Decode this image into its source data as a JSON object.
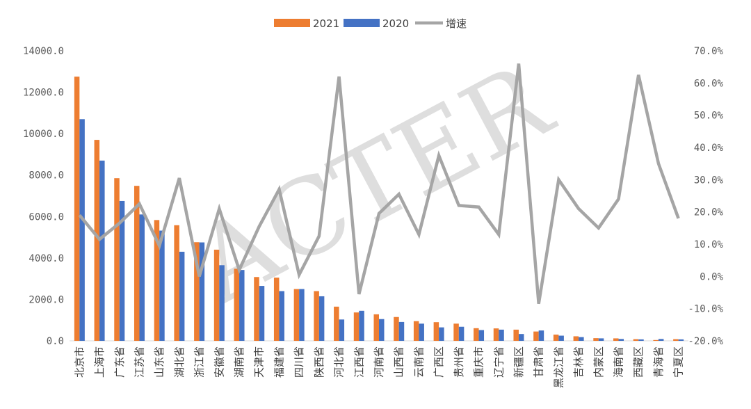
{
  "chart_data": {
    "type": "bar",
    "categories": [
      "北京市",
      "上海市",
      "广东省",
      "江苏省",
      "山东省",
      "湖北省",
      "浙江省",
      "安徽省",
      "湖南省",
      "天津市",
      "福建省",
      "四川省",
      "陕西省",
      "河北省",
      "江西省",
      "河南省",
      "山西省",
      "云南省",
      "广西区",
      "贵州省",
      "重庆市",
      "辽宁省",
      "新疆区",
      "甘肃省",
      "黑龙江省",
      "吉林省",
      "内蒙区",
      "海南省",
      "西藏区",
      "青海省",
      "宁夏区"
    ],
    "series": [
      {
        "name": "2021",
        "type": "bar",
        "axis": "left",
        "color": "#ED7D31",
        "values": [
          12750,
          9700,
          7850,
          7480,
          5830,
          5580,
          4760,
          4400,
          3480,
          3080,
          3050,
          2500,
          2400,
          1650,
          1370,
          1280,
          1150,
          950,
          900,
          830,
          610,
          600,
          540,
          450,
          300,
          220,
          130,
          120,
          80,
          40,
          80
        ]
      },
      {
        "name": "2020",
        "type": "bar",
        "axis": "left",
        "color": "#4472C4",
        "values": [
          10700,
          8700,
          6750,
          6100,
          5320,
          4300,
          4750,
          3650,
          3420,
          2650,
          2400,
          2500,
          2150,
          1030,
          1450,
          1050,
          910,
          830,
          650,
          680,
          520,
          540,
          330,
          500,
          250,
          180,
          120,
          90,
          70,
          90,
          70
        ]
      },
      {
        "name": "增速",
        "type": "line",
        "axis": "right",
        "color": "#A5A5A5",
        "values": [
          19.0,
          11.5,
          16.5,
          22.5,
          9.5,
          30.5,
          0.0,
          21.0,
          2.0,
          15.5,
          27.0,
          0.5,
          12.5,
          62.0,
          -5.5,
          19.5,
          25.5,
          13.0,
          37.5,
          22.0,
          21.5,
          13.0,
          66.0,
          -8.5,
          30.0,
          21.0,
          15.0,
          24.0,
          62.5,
          35.0,
          18.0
        ]
      }
    ],
    "y_left": {
      "min": 0,
      "max": 14000,
      "step": 2000,
      "ticks": [
        "0.0",
        "2000.0",
        "4000.0",
        "6000.0",
        "8000.0",
        "10000.0",
        "12000.0",
        "14000.0"
      ]
    },
    "y_right": {
      "min": -20,
      "max": 70,
      "step": 10,
      "ticks": [
        "-20.0%",
        "-10.0%",
        "0.0%",
        "10.0%",
        "20.0%",
        "30.0%",
        "40.0%",
        "50.0%",
        "60.0%",
        "70.0%"
      ]
    },
    "grid": false,
    "legend_position": "top-center",
    "title": "",
    "xlabel": "",
    "ylabel": "",
    "watermark": "ACTER"
  }
}
